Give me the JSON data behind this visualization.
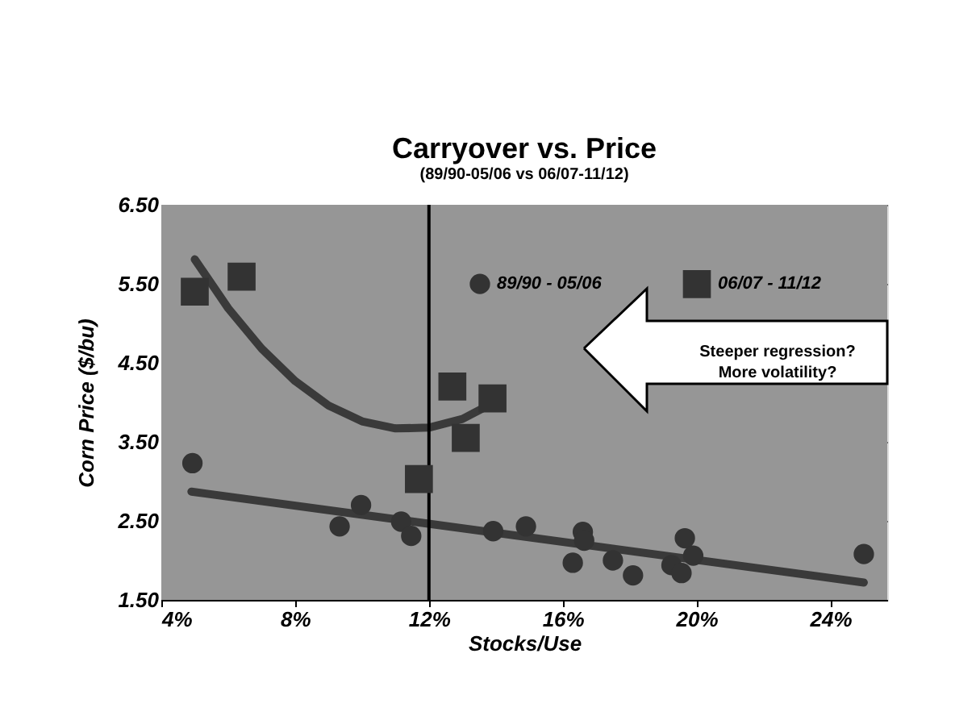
{
  "chart_data": {
    "type": "scatter",
    "title": "Carryover vs. Price",
    "subtitle": "(89/90-05/06 vs 06/07-11/12)",
    "xlabel": "Stocks/Use",
    "ylabel": "Corn Price ($/bu)",
    "xlim": [
      4,
      25.7
    ],
    "ylim": [
      1.5,
      6.5
    ],
    "xticks": [
      {
        "value": 4,
        "label": "4%"
      },
      {
        "value": 8,
        "label": "8%"
      },
      {
        "value": 12,
        "label": "12%"
      },
      {
        "value": 16,
        "label": "16%"
      },
      {
        "value": 20,
        "label": "20%"
      },
      {
        "value": 24,
        "label": "24%"
      }
    ],
    "yticks": [
      {
        "value": 1.5,
        "label": "1.50"
      },
      {
        "value": 2.5,
        "label": "2.50"
      },
      {
        "value": 3.5,
        "label": "3.50"
      },
      {
        "value": 4.5,
        "label": "4.50"
      },
      {
        "value": 5.5,
        "label": "5.50"
      },
      {
        "value": 6.5,
        "label": "6.50"
      }
    ],
    "grid": "y",
    "legend": "top right",
    "series": [
      {
        "name": "89/90 - 05/06",
        "marker": "circle",
        "color": "#333333",
        "x": [
          4.93,
          9.33,
          9.97,
          11.17,
          11.47,
          13.92,
          14.9,
          16.6,
          16.64,
          16.3,
          17.5,
          18.1,
          19.65,
          19.9,
          19.25,
          19.55,
          25.0
        ],
        "values": [
          3.23,
          2.43,
          2.7,
          2.49,
          2.31,
          2.37,
          2.43,
          2.36,
          2.25,
          1.97,
          2.0,
          1.81,
          2.28,
          2.06,
          1.94,
          1.84,
          2.08
        ]
      },
      {
        "name": "06/07 - 11/12",
        "marker": "square",
        "color": "#333333",
        "x": [
          5.0,
          6.4,
          11.7,
          12.7,
          13.9,
          13.1
        ],
        "values": [
          5.4,
          5.59,
          3.03,
          4.2,
          4.05,
          3.55
        ]
      },
      {
        "type": "line",
        "color": "#3a3a3a",
        "x": [
          4.9,
          25.0
        ],
        "values": [
          2.87,
          1.72
        ]
      },
      {
        "type": "line",
        "color": "#3a3a3a",
        "x": [
          5,
          6,
          7,
          8,
          9,
          10,
          11,
          12,
          13,
          14
        ],
        "values": [
          5.81,
          5.19,
          4.68,
          4.27,
          3.96,
          3.76,
          3.67,
          3.68,
          3.79,
          4.01
        ]
      }
    ],
    "ref_lines": [
      {
        "axis": "x",
        "value": 12,
        "color": "#000000"
      }
    ],
    "annotations": [
      "Steeper regression?\nMore volatility?"
    ]
  }
}
